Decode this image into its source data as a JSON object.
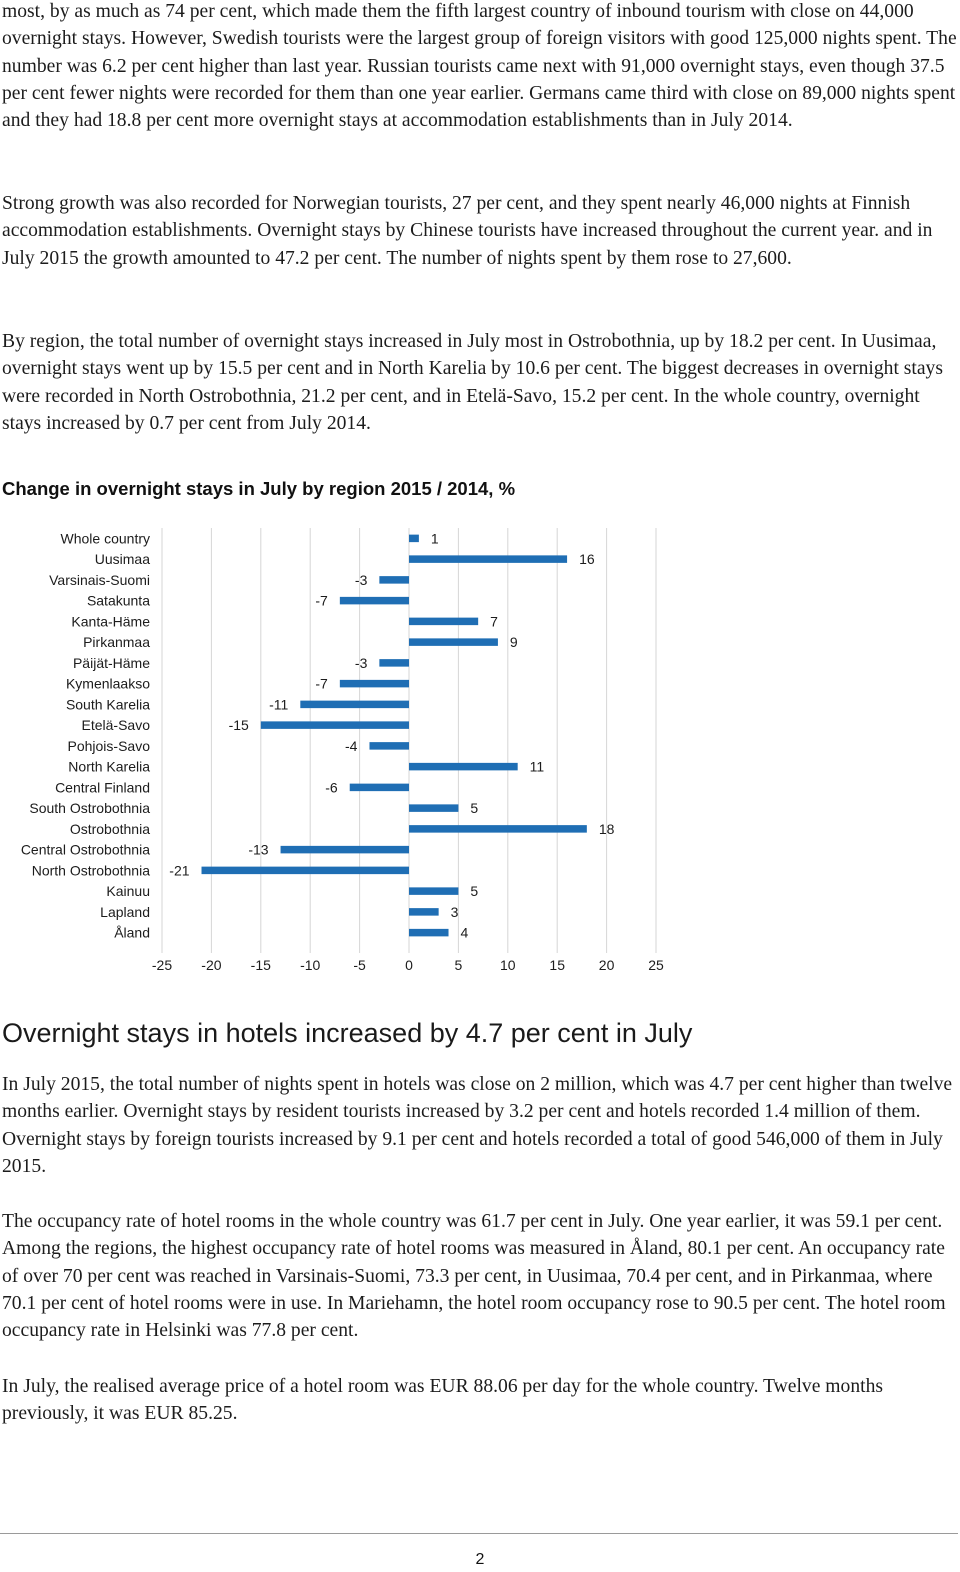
{
  "paragraphs": {
    "p1": "most, by as much as 74 per cent, which made them the fifth largest country of inbound tourism with close on 44,000 overnight stays. However, Swedish tourists were the largest group of foreign visitors with good 125,000 nights spent. The number was 6.2 per cent higher than last year. Russian tourists came next with 91,000 overnight stays, even though 37.5 per cent fewer nights were recorded for them than one year earlier. Germans came third with close on 89,000 nights spent and they had 18.8 per cent more overnight stays at accommodation establishments than in July 2014.",
    "p2": "Strong growth was also recorded for Norwegian tourists, 27 per cent, and they spent nearly 46,000 nights at Finnish accommodation establishments. Overnight stays by Chinese tourists have increased throughout the current year. and in July 2015 the growth amounted to 47.2 per cent. The number of nights spent by them rose to 27,600.",
    "p3": "By region, the total number of overnight stays increased in July most in Ostrobothnia, up by 18.2 per cent. In Uusimaa, overnight stays went up by 15.5 per cent and in North Karelia by 10.6 per cent. The biggest decreases in overnight stays were recorded in North Ostrobothnia, 21.2 per cent, and in Etelä-Savo, 15.2 per cent. In the whole country, overnight stays increased by 0.7 per cent from July 2014.",
    "p4": "In July 2015, the total number of nights spent in hotels was close on 2 million, which was 4.7 per cent higher than twelve months earlier. Overnight stays by resident tourists increased by 3.2 per cent and hotels recorded 1.4 million of them. Overnight stays by foreign tourists increased by 9.1 per cent and hotels recorded a total of good 546,000 of them in July 2015.",
    "p5": "The occupancy rate of hotel rooms in the whole country was 61.7 per cent in July. One year earlier, it was 59.1 per cent. Among the regions, the highest occupancy rate of hotel rooms was measured in Åland, 80.1 per cent. An occupancy rate of over 70 per cent was reached in Varsinais-Suomi, 73.3 per cent, in Uusimaa, 70.4 per cent, and in Pirkanmaa, where 70.1 per cent of hotel rooms were in use. In Mariehamn, the hotel room occupancy rose to 90.5 per cent. The hotel room occupancy rate in Helsinki was 77.8 per cent.",
    "p6": "In July, the realised average price of a hotel room was EUR 88.06 per day for the whole country. Twelve months previously, it was EUR 85.25."
  },
  "section_heading": "Overnight stays in hotels increased by 4.7 per cent in July",
  "page_number": "2",
  "colors": {
    "bar": "#1f6eb4",
    "grid": "#d6d6d6",
    "text": "#1c1c1c"
  },
  "chart_data": {
    "type": "bar",
    "orientation": "horizontal",
    "title": "Change in overnight stays in July by region 2015 / 2014, %",
    "xlabel": "",
    "ylabel": "",
    "xlim": [
      -25,
      25
    ],
    "xticks": [
      -25,
      -20,
      -15,
      -10,
      -5,
      0,
      5,
      10,
      15,
      20,
      25
    ],
    "grid": true,
    "categories": [
      "Whole country",
      "Uusimaa",
      "Varsinais-Suomi",
      "Satakunta",
      "Kanta-Häme",
      "Pirkanmaa",
      "Päijät-Häme",
      "Kymenlaakso",
      "South Karelia",
      "Etelä-Savo",
      "Pohjois-Savo",
      "North Karelia",
      "Central Finland",
      "South Ostrobothnia",
      "Ostrobothnia",
      "Central Ostrobothnia",
      "North Ostrobothnia",
      "Kainuu",
      "Lapland",
      "Åland"
    ],
    "values": [
      1,
      16,
      -3,
      -7,
      7,
      9,
      -3,
      -7,
      -11,
      -15,
      -4,
      11,
      -6,
      5,
      18,
      -13,
      -21,
      5,
      3,
      4
    ]
  }
}
